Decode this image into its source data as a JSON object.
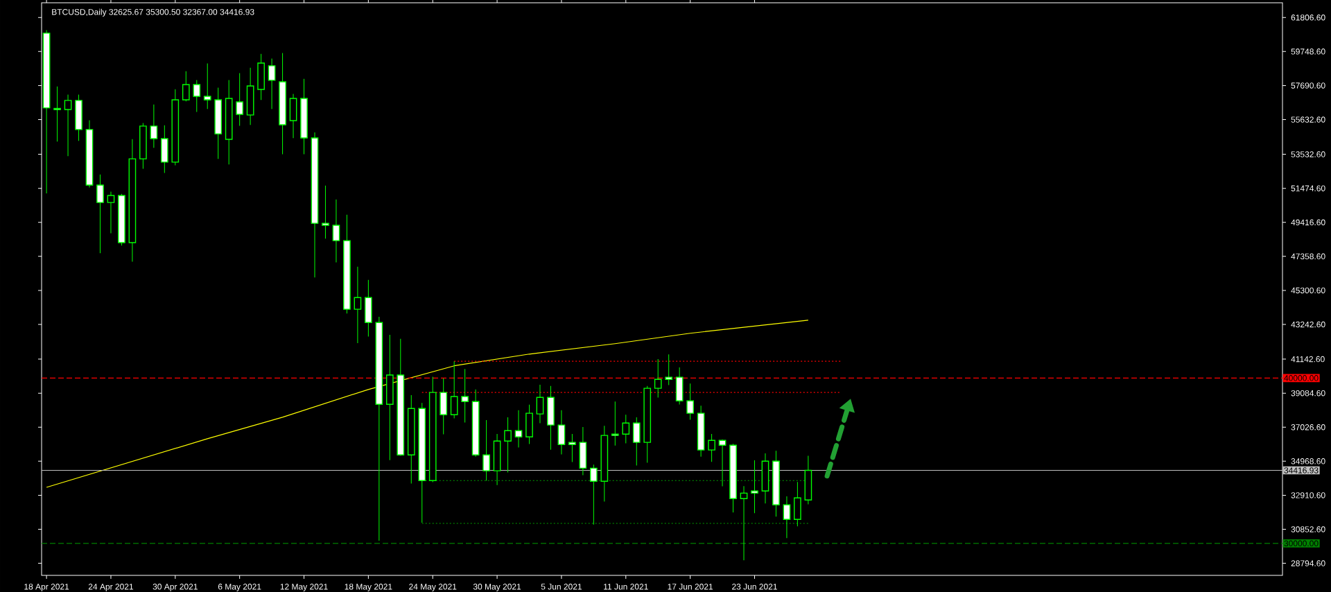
{
  "chart_data": {
    "type": "candlestick",
    "title": "BTCUSD,Daily 32625.67 35300.50 32367.00 34416.93",
    "color": "#00ff00",
    "x": [
      "2021-04-18",
      "2021-04-19",
      "2021-04-20",
      "2021-04-21",
      "2021-04-22",
      "2021-04-23",
      "2021-04-24",
      "2021-04-25",
      "2021-04-26",
      "2021-04-27",
      "2021-04-28",
      "2021-04-29",
      "2021-04-30",
      "2021-05-01",
      "2021-05-02",
      "2021-05-03",
      "2021-05-04",
      "2021-05-05",
      "2021-05-06",
      "2021-05-07",
      "2021-05-08",
      "2021-05-09",
      "2021-05-10",
      "2021-05-11",
      "2021-05-12",
      "2021-05-13",
      "2021-05-14",
      "2021-05-15",
      "2021-05-16",
      "2021-05-17",
      "2021-05-18",
      "2021-05-19",
      "2021-05-20",
      "2021-05-21",
      "2021-05-22",
      "2021-05-23",
      "2021-05-24",
      "2021-05-25",
      "2021-05-26",
      "2021-05-27",
      "2021-05-28",
      "2021-05-29",
      "2021-05-30",
      "2021-05-31",
      "2021-06-01",
      "2021-06-02",
      "2021-06-03",
      "2021-06-04",
      "2021-06-05",
      "2021-06-06",
      "2021-06-07",
      "2021-06-08",
      "2021-06-09",
      "2021-06-10",
      "2021-06-11",
      "2021-06-12",
      "2021-06-13",
      "2021-06-14",
      "2021-06-15",
      "2021-06-16",
      "2021-06-17",
      "2021-06-18",
      "2021-06-19",
      "2021-06-20",
      "2021-06-21",
      "2021-06-22",
      "2021-06-23",
      "2021-06-24",
      "2021-06-25",
      "2021-06-26",
      "2021-06-27",
      "2021-06-28"
    ],
    "ohlc": [
      [
        60860,
        61040,
        51170,
        56340
      ],
      [
        56310,
        57640,
        54300,
        56240
      ],
      [
        56240,
        57140,
        53420,
        56790
      ],
      [
        56790,
        57140,
        54340,
        55030
      ],
      [
        55030,
        55590,
        51530,
        51670
      ],
      [
        51670,
        52310,
        47550,
        50620
      ],
      [
        50620,
        51270,
        48760,
        51040
      ],
      [
        51040,
        51140,
        48010,
        48190
      ],
      [
        48190,
        54450,
        47040,
        53260
      ],
      [
        53260,
        55420,
        52660,
        55240
      ],
      [
        55240,
        56550,
        53920,
        54480
      ],
      [
        54480,
        55290,
        52410,
        53060
      ],
      [
        53060,
        57470,
        52870,
        56830
      ],
      [
        56830,
        58560,
        56730,
        57750
      ],
      [
        57750,
        58020,
        56100,
        57040
      ],
      [
        57040,
        59030,
        56270,
        56830
      ],
      [
        56830,
        57560,
        53250,
        54770
      ],
      [
        54440,
        58020,
        52920,
        56910
      ],
      [
        56700,
        58440,
        55260,
        55950
      ],
      [
        55910,
        58770,
        55310,
        57670
      ],
      [
        57460,
        59610,
        56820,
        59050
      ],
      [
        58890,
        59320,
        56270,
        58010
      ],
      [
        57920,
        59660,
        53540,
        55320
      ],
      [
        55570,
        57180,
        54510,
        56910
      ],
      [
        56910,
        58100,
        53540,
        54520
      ],
      [
        54520,
        54860,
        46080,
        49360
      ],
      [
        49360,
        51640,
        48430,
        49240
      ],
      [
        49240,
        50800,
        47000,
        48310
      ],
      [
        48310,
        49880,
        43900,
        44160
      ],
      [
        44160,
        46730,
        42110,
        44870
      ],
      [
        44870,
        45940,
        42510,
        43360
      ],
      [
        43360,
        43710,
        30160,
        38410
      ],
      [
        38410,
        42620,
        35040,
        40180
      ],
      [
        40180,
        42370,
        35300,
        35350
      ],
      [
        35350,
        38970,
        33620,
        38160
      ],
      [
        38160,
        38500,
        31250,
        33800
      ],
      [
        33800,
        40080,
        33700,
        39130
      ],
      [
        39130,
        39980,
        36600,
        37780
      ],
      [
        37780,
        41010,
        37560,
        38880
      ],
      [
        38880,
        40550,
        37310,
        38580
      ],
      [
        38580,
        39310,
        35250,
        35350
      ],
      [
        35350,
        37460,
        33790,
        34390
      ],
      [
        34390,
        36620,
        33530,
        36190
      ],
      [
        36190,
        37630,
        34290,
        36820
      ],
      [
        36820,
        38050,
        35800,
        36440
      ],
      [
        36440,
        38390,
        36010,
        37870
      ],
      [
        37830,
        39600,
        37270,
        38830
      ],
      [
        38830,
        39520,
        35670,
        37160
      ],
      [
        37160,
        38050,
        35380,
        35980
      ],
      [
        36110,
        36620,
        34920,
        35980
      ],
      [
        36110,
        37040,
        34120,
        34550
      ],
      [
        34550,
        34760,
        31140,
        33760
      ],
      [
        33760,
        37110,
        32530,
        36530
      ],
      [
        36610,
        38580,
        35920,
        36530
      ],
      [
        36610,
        37780,
        36050,
        37280
      ],
      [
        37280,
        37620,
        34710,
        36110
      ],
      [
        36110,
        39520,
        34880,
        39380
      ],
      [
        39380,
        41150,
        38820,
        39920
      ],
      [
        40050,
        41430,
        39580,
        39920
      ],
      [
        40050,
        40640,
        38400,
        38620
      ],
      [
        38620,
        39670,
        37480,
        37870
      ],
      [
        37870,
        38330,
        35250,
        35650
      ],
      [
        35650,
        36620,
        34930,
        36230
      ],
      [
        36230,
        36280,
        33450,
        35940
      ],
      [
        35940,
        36020,
        31870,
        32710
      ],
      [
        32710,
        33460,
        28980,
        33040
      ],
      [
        33170,
        35030,
        31830,
        33040
      ],
      [
        33170,
        35440,
        32420,
        34970
      ],
      [
        34970,
        35600,
        31620,
        32330
      ],
      [
        32330,
        32840,
        30320,
        31450
      ],
      [
        31450,
        33720,
        31030,
        32750
      ],
      [
        32625.67,
        35300.5,
        32367,
        34416.93
      ]
    ],
    "series": [
      {
        "type": "line",
        "color": "#ffff00",
        "line_style": "solid",
        "x": [
          "2021-04-18",
          "2021-05-03",
          "2021-05-10",
          "2021-05-18",
          "2021-05-26",
          "2021-06-02",
          "2021-06-10",
          "2021-06-17",
          "2021-06-28"
        ],
        "values": [
          33390,
          36330,
          37630,
          39310,
          40740,
          41450,
          42080,
          42710,
          43500
        ]
      },
      {
        "type": "line",
        "color": "#ff0000",
        "line_style": "dotted",
        "x": [
          "2021-05-26",
          "2021-07-01"
        ],
        "values": [
          41020,
          41020
        ]
      },
      {
        "type": "line",
        "color": "#ff0000",
        "line_style": "dotted",
        "x": [
          "2021-05-23",
          "2021-07-01"
        ],
        "values": [
          39130,
          39130
        ]
      },
      {
        "type": "line",
        "color": "#00a000",
        "line_style": "dotted",
        "x": [
          "2021-05-23",
          "2021-06-28"
        ],
        "values": [
          33800,
          33800
        ]
      },
      {
        "type": "line",
        "color": "#00a000",
        "line_style": "dotted",
        "x": [
          "2021-05-23",
          "2021-06-28"
        ],
        "values": [
          31210,
          31210
        ]
      }
    ],
    "ref_lines": [
      {
        "axis": "y",
        "value": 40000,
        "label": "40000.00",
        "color": "#ff0000",
        "line_style": "dashed"
      },
      {
        "axis": "y",
        "value": 30000,
        "label": "30000.00",
        "color": "#008000",
        "line_style": "dashed"
      },
      {
        "axis": "y",
        "value": 34416.93,
        "label": "34416.93",
        "color": "#c0c0c0",
        "line_style": "solid"
      }
    ],
    "xlim": [
      "2021-04-17T13:00",
      "2021-08-11T05:00"
    ],
    "ylim": [
      28066,
      62700
    ],
    "xticks": [
      {
        "value": "2021-04-18",
        "label": "18 Apr 2021"
      },
      {
        "value": "2021-04-24",
        "label": "24 Apr 2021"
      },
      {
        "value": "2021-04-30",
        "label": "30 Apr 2021"
      },
      {
        "value": "2021-05-06",
        "label": "6 May 2021"
      },
      {
        "value": "2021-05-12",
        "label": "12 May 2021"
      },
      {
        "value": "2021-05-18",
        "label": "18 May 2021"
      },
      {
        "value": "2021-05-24",
        "label": "24 May 2021"
      },
      {
        "value": "2021-05-30",
        "label": "30 May 2021"
      },
      {
        "value": "2021-06-05",
        "label": "5 Jun 2021"
      },
      {
        "value": "2021-06-11",
        "label": "11 Jun 2021"
      },
      {
        "value": "2021-06-17",
        "label": "17 Jun 2021"
      },
      {
        "value": "2021-06-23",
        "label": "23 Jun 2021"
      }
    ],
    "yticks": [
      {
        "value": 61806.6,
        "label": "61806.60"
      },
      {
        "value": 59748.6,
        "label": "59748.60"
      },
      {
        "value": 57690.6,
        "label": "57690.60"
      },
      {
        "value": 55632.6,
        "label": "55632.60"
      },
      {
        "value": 53532.6,
        "label": "53532.60"
      },
      {
        "value": 51474.6,
        "label": "51474.60"
      },
      {
        "value": 49416.6,
        "label": "49416.60"
      },
      {
        "value": 47358.6,
        "label": "47358.60"
      },
      {
        "value": 45300.6,
        "label": "45300.60"
      },
      {
        "value": 43242.6,
        "label": "43242.60"
      },
      {
        "value": 41142.6,
        "label": "41142.60"
      },
      {
        "value": 39084.6,
        "label": "39084.60"
      },
      {
        "value": 37026.6,
        "label": "37026.60"
      },
      {
        "value": 34968.6,
        "label": "34968.60"
      },
      {
        "value": 32910.6,
        "label": "32910.60"
      },
      {
        "value": 30852.6,
        "label": "30852.60"
      },
      {
        "value": 28794.6,
        "label": "28794.60"
      }
    ]
  }
}
